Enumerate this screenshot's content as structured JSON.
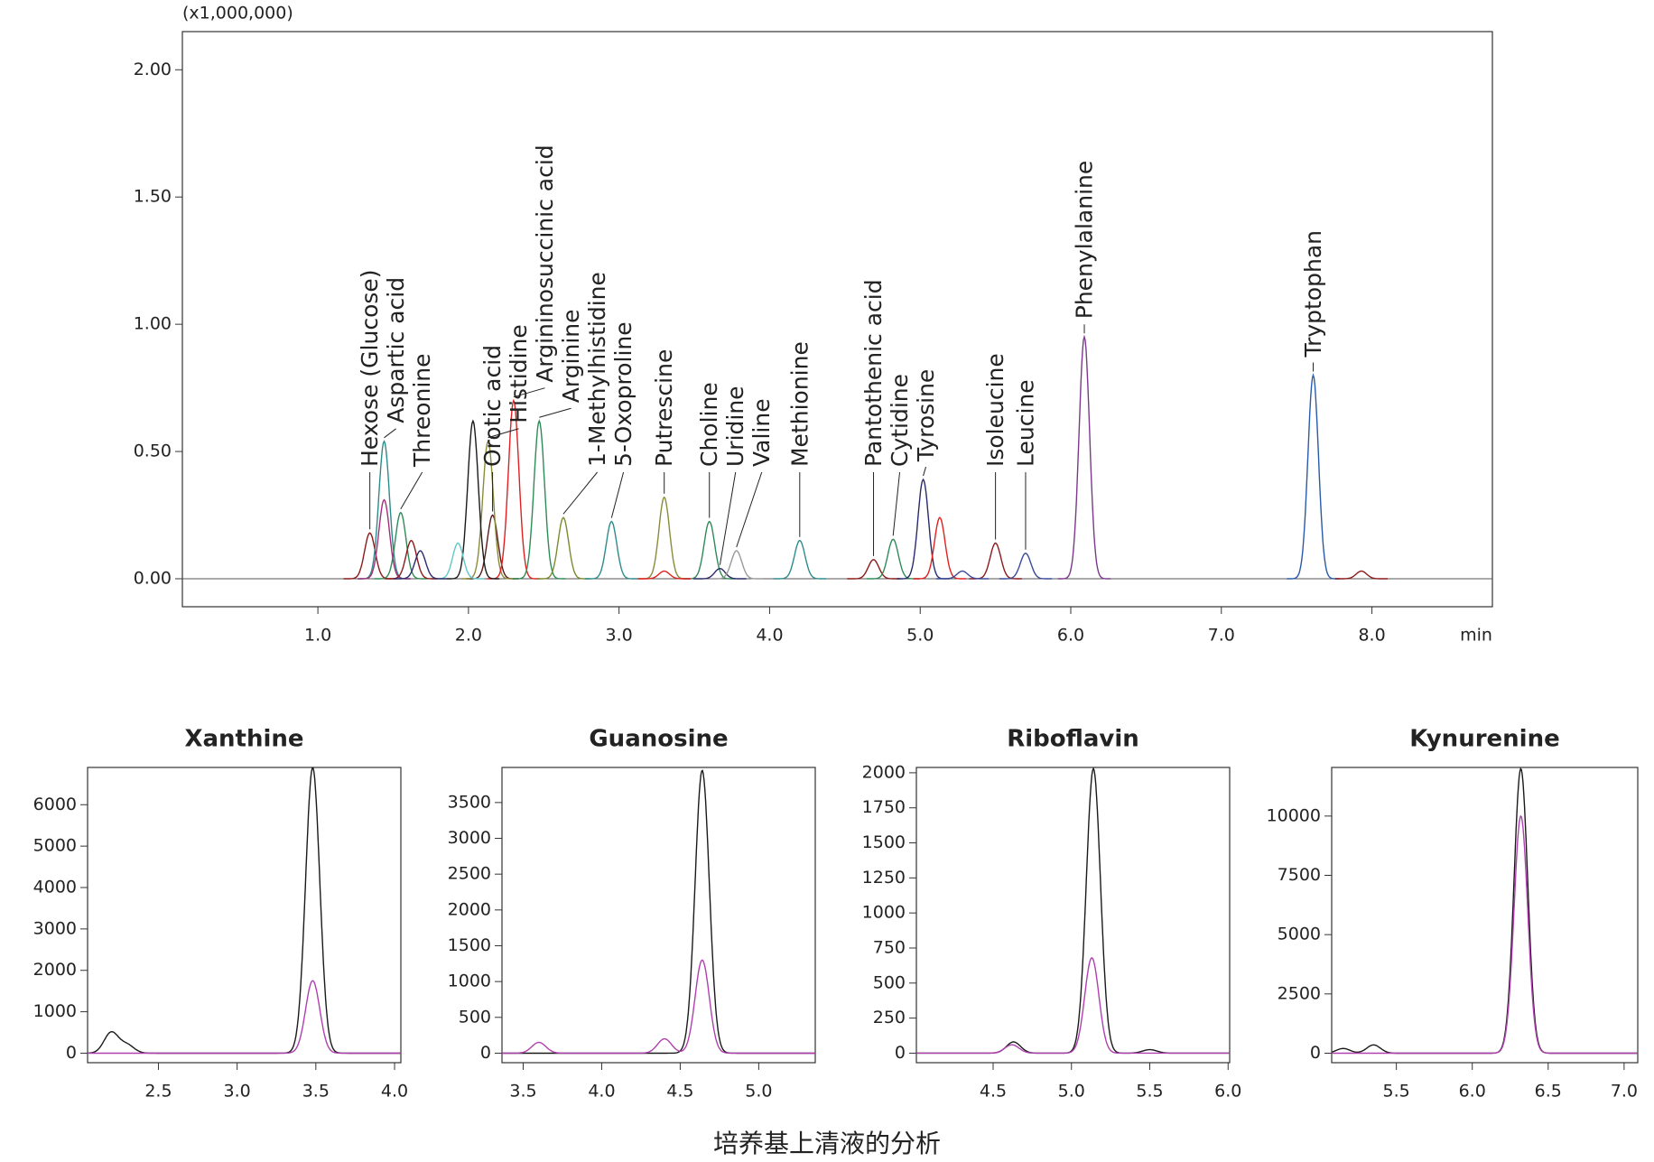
{
  "chart_data": [
    {
      "type": "chromatogram",
      "multiplier_label": "(x1,000,000)",
      "x_unit": "min",
      "xlim": [
        0.1,
        8.8
      ],
      "ylim": [
        -0.11,
        2.15
      ],
      "xticks": [
        {
          "value": 1,
          "label": "1.0"
        },
        {
          "value": 2,
          "label": "2.0"
        },
        {
          "value": 3,
          "label": "3.0"
        },
        {
          "value": 4,
          "label": "4.0"
        },
        {
          "value": 5,
          "label": "5.0"
        },
        {
          "value": 6,
          "label": "6.0"
        },
        {
          "value": 7,
          "label": "7.0"
        },
        {
          "value": 8,
          "label": "8.0"
        }
      ],
      "yticks": [
        {
          "value": 0,
          "label": "0.00"
        },
        {
          "value": 0.5,
          "label": "0.50"
        },
        {
          "value": 1,
          "label": "1.00"
        },
        {
          "value": 1.5,
          "label": "1.50"
        },
        {
          "value": 2,
          "label": "2.00"
        }
      ],
      "peaks": [
        {
          "label": "Hexose (Glucose)",
          "x": 1.345,
          "value": 0.18,
          "color": "#8b1a1a"
        },
        {
          "label": "Aspartic acid",
          "x": 1.44,
          "value": 0.54,
          "color": "#2e8b8b"
        },
        {
          "label": "Threonine",
          "x": 1.55,
          "value": 0.26,
          "color": "#2e8b57"
        },
        {
          "label": "Orotic acid",
          "x": 2.16,
          "value": 0.25,
          "color": "#5c1a1a"
        },
        {
          "label": "Histidine",
          "x": 2.13,
          "value": 0.54,
          "color": "#8b8b3a"
        },
        {
          "label": "Argininosuccinic acid",
          "x": 2.3,
          "value": 0.7,
          "color": "#e02020"
        },
        {
          "label": "Arginine",
          "x": 2.47,
          "value": 0.62,
          "color": "#2e8b57"
        },
        {
          "label": "1-Methylhistidine",
          "x": 2.63,
          "value": 0.24,
          "color": "#7a8b2e"
        },
        {
          "label": "5-Oxoproline",
          "x": 2.95,
          "value": 0.225,
          "color": "#2e8b8b"
        },
        {
          "label": "Putrescine",
          "x": 3.3,
          "value": 0.32,
          "color": "#8b8b3a"
        },
        {
          "label": "Choline",
          "x": 3.6,
          "value": 0.225,
          "color": "#2e8b57"
        },
        {
          "label": "Uridine",
          "x": 3.67,
          "value": 0.04,
          "color": "#2a2a6a"
        },
        {
          "label": "Valine",
          "x": 3.78,
          "value": 0.11,
          "color": "#999999"
        },
        {
          "label": "Methionine",
          "x": 4.2,
          "value": 0.15,
          "color": "#2e8b8b"
        },
        {
          "label": "Pantothenic acid",
          "x": 4.69,
          "value": 0.075,
          "color": "#8b1a1a"
        },
        {
          "label": "Cytidine",
          "x": 4.82,
          "value": 0.155,
          "color": "#2e8b57"
        },
        {
          "label": "Tyrosine",
          "x": 5.02,
          "value": 0.39,
          "color": "#2a2a6a"
        },
        {
          "label": "Isoleucine",
          "x": 5.5,
          "value": 0.14,
          "color": "#8b1a1a"
        },
        {
          "label": "Leucine",
          "x": 5.7,
          "value": 0.1,
          "color": "#3a4a9a"
        },
        {
          "label": "Phenylalanine",
          "x": 6.09,
          "value": 0.95,
          "color": "#7a3a8a"
        },
        {
          "label": "Tryptophan",
          "x": 7.61,
          "value": 0.8,
          "color": "#2a5aa8"
        },
        {
          "label": null,
          "x": 2.03,
          "value": 0.62,
          "color": "#1a1a1a"
        },
        {
          "label": null,
          "x": 1.44,
          "value": 0.31,
          "color": "#a0307a"
        },
        {
          "label": null,
          "x": 1.93,
          "value": 0.14,
          "color": "#5fc8c8"
        },
        {
          "label": null,
          "x": 5.13,
          "value": 0.24,
          "color": "#e02020"
        },
        {
          "label": null,
          "x": 1.62,
          "value": 0.15,
          "color": "#8b1a1a"
        },
        {
          "label": null,
          "x": 1.68,
          "value": 0.11,
          "color": "#2a2a6a"
        },
        {
          "label": null,
          "x": 3.3,
          "value": 0.03,
          "color": "#e02020"
        },
        {
          "label": null,
          "x": 5.28,
          "value": 0.03,
          "color": "#3a4a9a"
        },
        {
          "label": null,
          "x": 7.93,
          "value": 0.03,
          "color": "#8b1a1a"
        }
      ]
    },
    {
      "type": "chromatogram",
      "title": "Xanthine",
      "xlim": [
        2.05,
        4.04
      ],
      "ylim": [
        -230,
        6900
      ],
      "xticks": [
        2.5,
        {
          "value": 3,
          "label": "3.0"
        },
        3.5,
        {
          "value": 4,
          "label": "4.0"
        }
      ],
      "yticks": [
        0,
        1000,
        2000,
        3000,
        4000,
        5000,
        6000
      ],
      "series": [
        {
          "color": "#1a1a1a",
          "x": [
            2.2,
            2.3,
            3.48
          ],
          "values": [
            500,
            200,
            6900
          ]
        },
        {
          "color": "#b040b0",
          "x": [
            3.48
          ],
          "values": [
            1750
          ]
        }
      ]
    },
    {
      "type": "chromatogram",
      "title": "Guanosine",
      "xlim": [
        3.365,
        5.36
      ],
      "ylim": [
        -133,
        3990
      ],
      "xticks": [
        3.5,
        {
          "value": 4,
          "label": "4.0"
        },
        4.5,
        {
          "value": 5,
          "label": "5.0"
        }
      ],
      "yticks": [
        0,
        500,
        1000,
        1500,
        2000,
        2500,
        3000,
        3500
      ],
      "series": [
        {
          "color": "#1a1a1a",
          "x": [
            4.64
          ],
          "values": [
            3950
          ]
        },
        {
          "color": "#b040b0",
          "x": [
            3.6,
            4.4,
            4.64
          ],
          "values": [
            150,
            200,
            1300
          ]
        }
      ]
    },
    {
      "type": "chromatogram",
      "title": "Riboflavin",
      "xlim": [
        4.01,
        6.01
      ],
      "ylim": [
        -68,
        2038
      ],
      "xticks": [
        4.5,
        {
          "value": 5,
          "label": "5.0"
        },
        5.5,
        {
          "value": 6,
          "label": "6.0"
        }
      ],
      "yticks": [
        0,
        250,
        500,
        750,
        1000,
        1250,
        1500,
        1750,
        2000
      ],
      "series": [
        {
          "color": "#1a1a1a",
          "x": [
            4.63,
            5.14,
            5.5
          ],
          "values": [
            80,
            2030,
            25
          ]
        },
        {
          "color": "#b040b0",
          "x": [
            4.62,
            5.13
          ],
          "values": [
            60,
            680
          ]
        }
      ]
    },
    {
      "type": "chromatogram",
      "title": "Kynurenine",
      "xlim": [
        5.074,
        7.09
      ],
      "ylim": [
        -400,
        12050
      ],
      "xticks": [
        5.5,
        {
          "value": 6,
          "label": "6.0"
        },
        6.5,
        {
          "value": 7,
          "label": "7.0"
        }
      ],
      "yticks": [
        0,
        2500,
        5000,
        7500,
        10000
      ],
      "series": [
        {
          "color": "#1a1a1a",
          "x": [
            5.15,
            5.35,
            6.32
          ],
          "values": [
            200,
            350,
            12000
          ]
        },
        {
          "color": "#b040b0",
          "x": [
            6.32
          ],
          "values": [
            10000
          ]
        }
      ]
    }
  ],
  "caption": "培养基上清液的分析"
}
